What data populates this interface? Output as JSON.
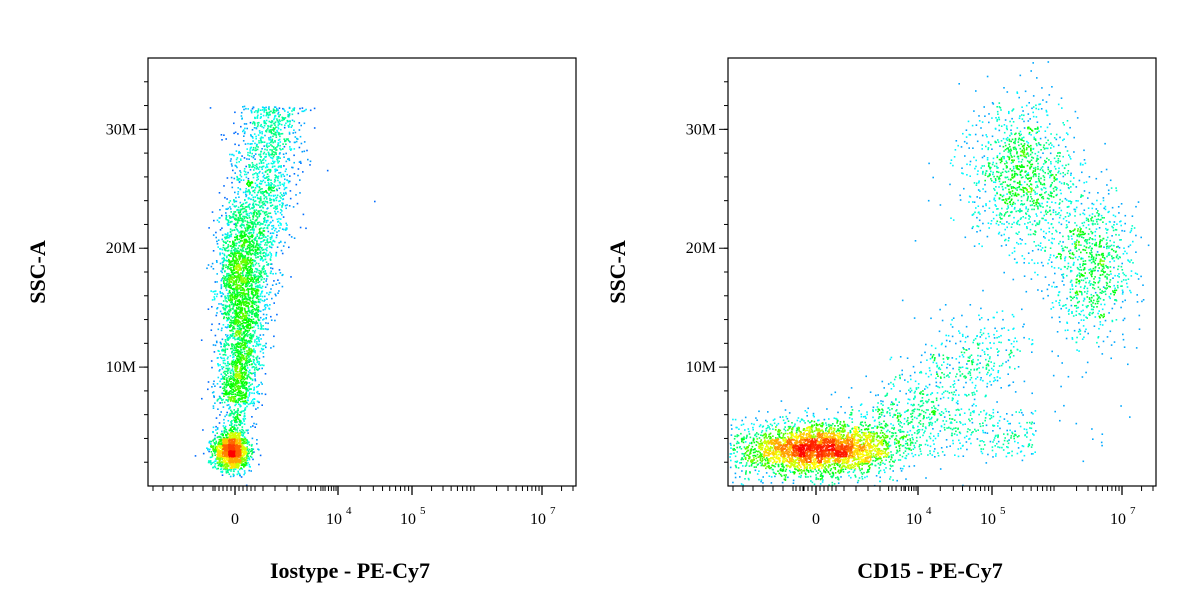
{
  "chart_data": [
    {
      "type": "scatter",
      "subtype": "flow-cytometry density dot plot",
      "xlabel": "Iostype - PE-Cy7",
      "ylabel": "SSC-A",
      "x_scale": "biexponential (log with linear region around 0)",
      "y_scale": "linear",
      "y_ticks": [
        {
          "value": 10000000,
          "label": "10M"
        },
        {
          "value": 20000000,
          "label": "20M"
        },
        {
          "value": 30000000,
          "label": "30M"
        }
      ],
      "x_ticks": [
        {
          "value": 0,
          "label": "0",
          "exp": ""
        },
        {
          "value": 10000,
          "label": "10",
          "exp": "4"
        },
        {
          "value": 100000,
          "label": "10",
          "exp": "5"
        },
        {
          "value": 10000000,
          "label": "10",
          "exp": "7"
        }
      ],
      "ylim": [
        0,
        36000000
      ],
      "color_scale": [
        "#0000ff",
        "#00ffff",
        "#00ff00",
        "#ffff00",
        "#ff8000",
        "#ff0000"
      ],
      "populations": [
        {
          "name": "low-SSC cluster",
          "x_center": 0,
          "ssc_center": 3000000,
          "relative_density": "highest"
        },
        {
          "name": "main SSC band",
          "x_center": 0,
          "ssc_range": [
            6000000,
            32000000
          ],
          "ssc_peak": 18000000,
          "relative_density": "high"
        }
      ]
    },
    {
      "type": "scatter",
      "subtype": "flow-cytometry density dot plot",
      "xlabel": "CD15 - PE-Cy7",
      "ylabel": "SSC-A",
      "x_scale": "biexponential (log with linear region around 0)",
      "y_scale": "linear",
      "y_ticks": [
        {
          "value": 10000000,
          "label": "10M"
        },
        {
          "value": 20000000,
          "label": "20M"
        },
        {
          "value": 30000000,
          "label": "30M"
        }
      ],
      "x_ticks": [
        {
          "value": 0,
          "label": "0",
          "exp": ""
        },
        {
          "value": 10000,
          "label": "10",
          "exp": "4"
        },
        {
          "value": 100000,
          "label": "10",
          "exp": "5"
        },
        {
          "value": 10000000,
          "label": "10",
          "exp": "7"
        }
      ],
      "ylim": [
        0,
        36000000
      ],
      "color_scale": [
        "#0000ff",
        "#00ffff",
        "#00ff00",
        "#ffff00",
        "#ff8000",
        "#ff0000"
      ],
      "populations": [
        {
          "name": "CD15-negative low-SSC cluster",
          "x_center": 0,
          "ssc_center": 3000000,
          "relative_density": "highest"
        },
        {
          "name": "intermediate diagonal",
          "x_range": [
            1000,
            100000
          ],
          "ssc_range": [
            4000000,
            13000000
          ],
          "relative_density": "low"
        },
        {
          "name": "CD15-high granulocytes (upper)",
          "x_center": 400000,
          "ssc_center": 26000000,
          "relative_density": "medium"
        },
        {
          "name": "CD15-high granulocytes (lower)",
          "x_center": 2500000,
          "ssc_center": 18000000,
          "relative_density": "low"
        }
      ]
    }
  ]
}
